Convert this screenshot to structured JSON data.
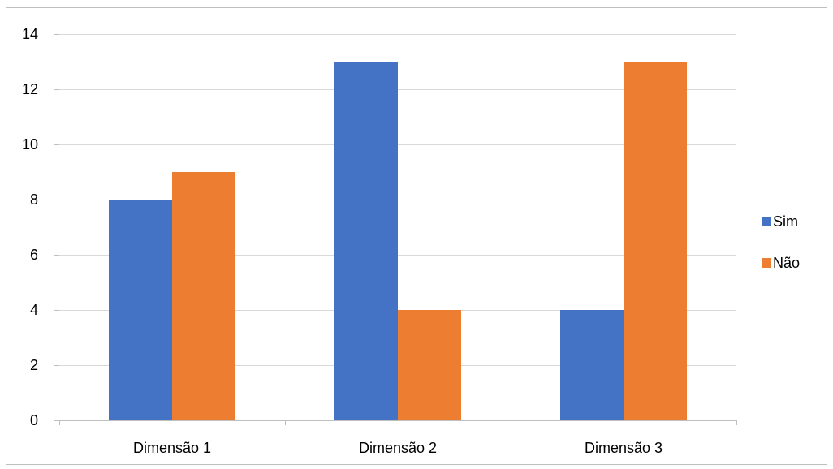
{
  "chart_data": {
    "type": "bar",
    "categories": [
      "Dimensão 1",
      "Dimensão 2",
      "Dimensão 3"
    ],
    "series": [
      {
        "name": "Sim",
        "values": [
          8,
          13,
          4
        ],
        "color": "#4472c4"
      },
      {
        "name": "Não",
        "values": [
          9,
          4,
          13
        ],
        "color": "#ed7d31"
      }
    ],
    "title": "",
    "xlabel": "",
    "ylabel": "",
    "ylim": [
      0,
      14
    ],
    "yticks": [
      0,
      2,
      4,
      6,
      8,
      10,
      12,
      14
    ],
    "grid": true,
    "legend_position": "right",
    "gridline_color": "#d9d9d9",
    "axis_color": "#bfbfbf"
  }
}
